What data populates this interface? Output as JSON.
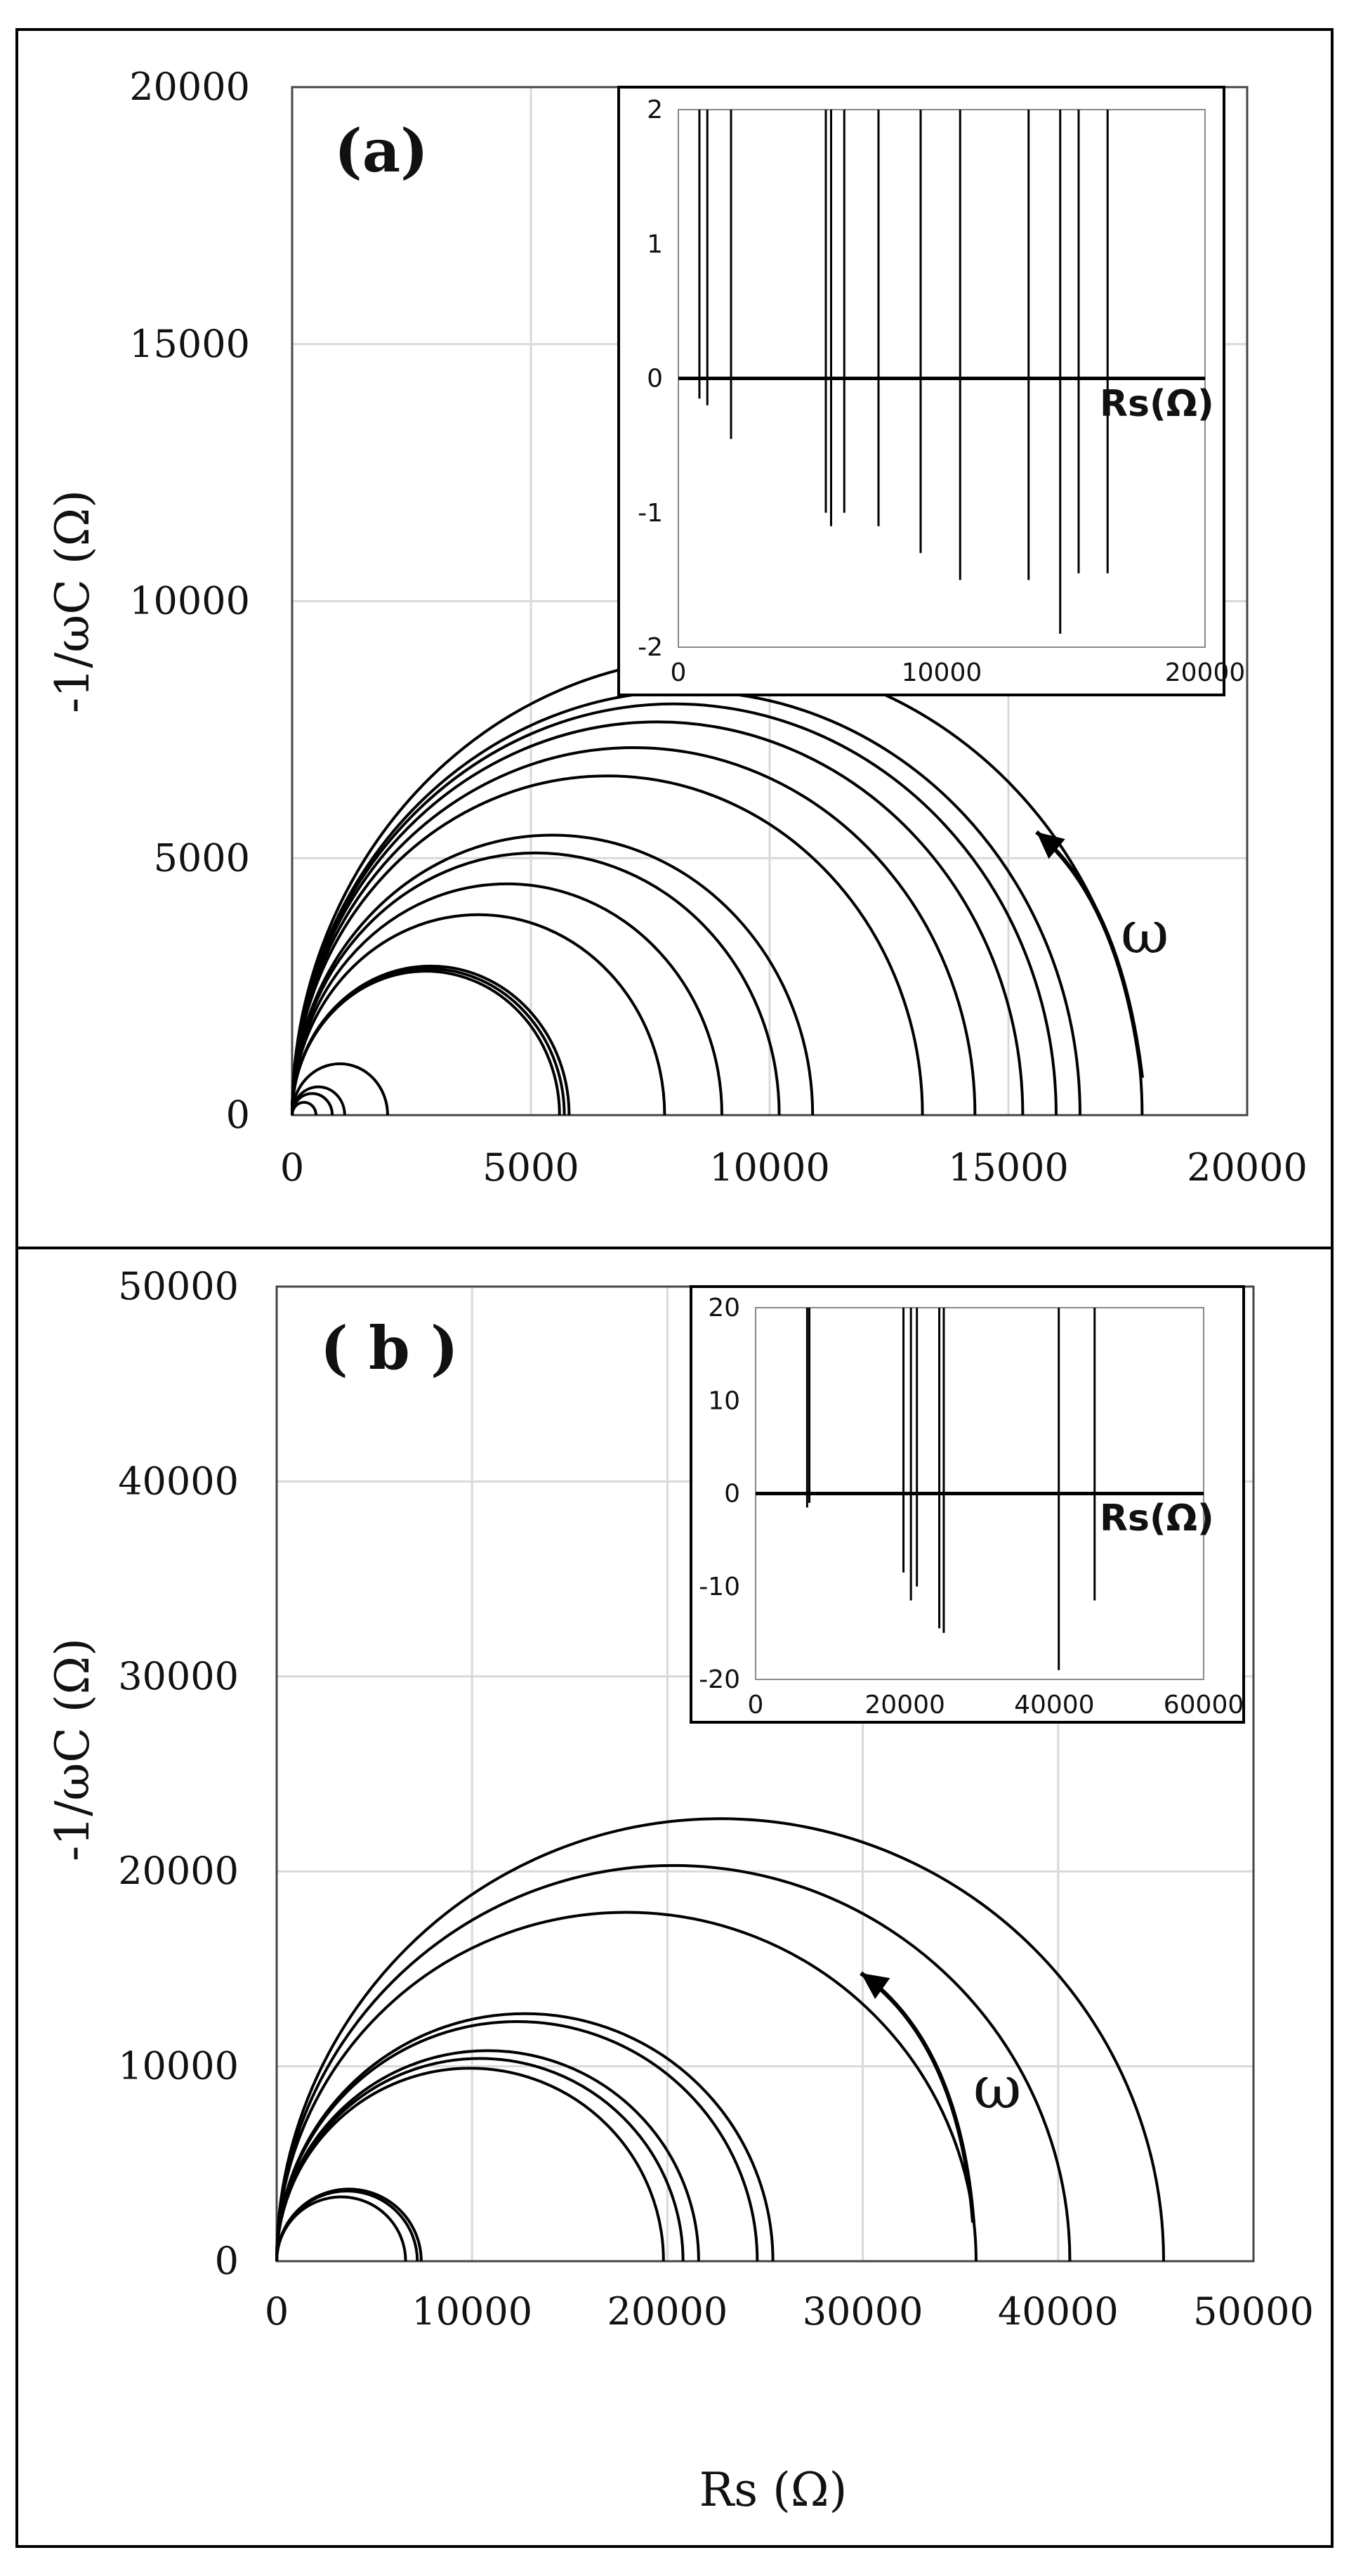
{
  "chart_data": [
    {
      "type": "line",
      "panel_label": "(a)",
      "xlabel": "",
      "ylabel": "-1/ωC (Ω)",
      "xlim": [
        0,
        20000
      ],
      "ylim": [
        0,
        20000
      ],
      "x_ticks": [
        0,
        5000,
        10000,
        15000,
        20000
      ],
      "y_ticks": [
        0,
        5000,
        10000,
        15000,
        20000
      ],
      "grid": true,
      "annotation": "ω",
      "semicircles": [
        {
          "center": 250,
          "radius": 250
        },
        {
          "center": 420,
          "radius": 420
        },
        {
          "center": 550,
          "radius": 550
        },
        {
          "center": 1000,
          "radius": 1000
        },
        {
          "center": 2800,
          "radius": 2800
        },
        {
          "center": 2850,
          "radius": 2850
        },
        {
          "center": 2900,
          "radius": 2900
        },
        {
          "center": 3900,
          "radius": 3900
        },
        {
          "center": 4500,
          "radius": 4500
        },
        {
          "center": 5100,
          "radius": 5100
        },
        {
          "center": 5450,
          "radius": 5450
        },
        {
          "center": 6600,
          "radius": 6600
        },
        {
          "center": 7150,
          "radius": 7150
        },
        {
          "center": 7650,
          "radius": 7650
        },
        {
          "center": 8000,
          "radius": 8000
        },
        {
          "center": 8250,
          "radius": 8250
        },
        {
          "center": 8900,
          "radius": 8900
        }
      ],
      "inset": {
        "type": "line",
        "xlabel": "Rs(Ω)",
        "xlim": [
          0,
          20000
        ],
        "ylim": [
          -2,
          2
        ],
        "x_ticks": [
          0,
          10000,
          20000
        ],
        "y_ticks": [
          -2,
          -1,
          0,
          1,
          2
        ],
        "spikes": [
          {
            "x": 800,
            "min": -0.15
          },
          {
            "x": 1100,
            "min": -0.2
          },
          {
            "x": 2000,
            "min": -0.45
          },
          {
            "x": 5600,
            "min": -1.0
          },
          {
            "x": 5800,
            "min": -1.1
          },
          {
            "x": 6300,
            "min": -1.0
          },
          {
            "x": 7600,
            "min": -1.1
          },
          {
            "x": 9200,
            "min": -1.3
          },
          {
            "x": 10700,
            "min": -1.5
          },
          {
            "x": 13300,
            "min": -1.5
          },
          {
            "x": 14500,
            "min": -1.9
          },
          {
            "x": 15200,
            "min": -1.45
          },
          {
            "x": 16300,
            "min": -1.45
          }
        ]
      }
    },
    {
      "type": "line",
      "panel_label": "( b )",
      "xlabel": "Rs (Ω)",
      "ylabel": "-1/ωC (Ω)",
      "xlim": [
        0,
        50000
      ],
      "ylim": [
        0,
        50000
      ],
      "x_ticks": [
        0,
        10000,
        20000,
        30000,
        40000,
        50000
      ],
      "y_ticks": [
        0,
        10000,
        20000,
        30000,
        40000,
        50000
      ],
      "grid": true,
      "annotation": "ω",
      "semicircles": [
        {
          "center": 3300,
          "radius": 3300
        },
        {
          "center": 3600,
          "radius": 3600
        },
        {
          "center": 3700,
          "radius": 3700
        },
        {
          "center": 9900,
          "radius": 9900
        },
        {
          "center": 10400,
          "radius": 10400
        },
        {
          "center": 10800,
          "radius": 10800
        },
        {
          "center": 12300,
          "radius": 12300
        },
        {
          "center": 12700,
          "radius": 12700
        },
        {
          "center": 17900,
          "radius": 17900
        },
        {
          "center": 20300,
          "radius": 20300
        },
        {
          "center": 22700,
          "radius": 22700
        }
      ],
      "inset": {
        "type": "line",
        "xlabel": "Rs(Ω)",
        "xlim": [
          0,
          60000
        ],
        "ylim": [
          -20,
          20
        ],
        "x_ticks": [
          0,
          20000,
          40000,
          60000
        ],
        "y_ticks": [
          -20,
          -10,
          0,
          10,
          20
        ],
        "spikes": [
          {
            "x": 6900,
            "min": -1.5
          },
          {
            "x": 7200,
            "min": -1.0
          },
          {
            "x": 19800,
            "min": -8.5
          },
          {
            "x": 20800,
            "min": -11.5
          },
          {
            "x": 21600,
            "min": -10.0
          },
          {
            "x": 24600,
            "min": -14.5
          },
          {
            "x": 25200,
            "min": -15.0
          },
          {
            "x": 40600,
            "min": -19.0
          },
          {
            "x": 45400,
            "min": -11.5
          }
        ]
      }
    }
  ]
}
